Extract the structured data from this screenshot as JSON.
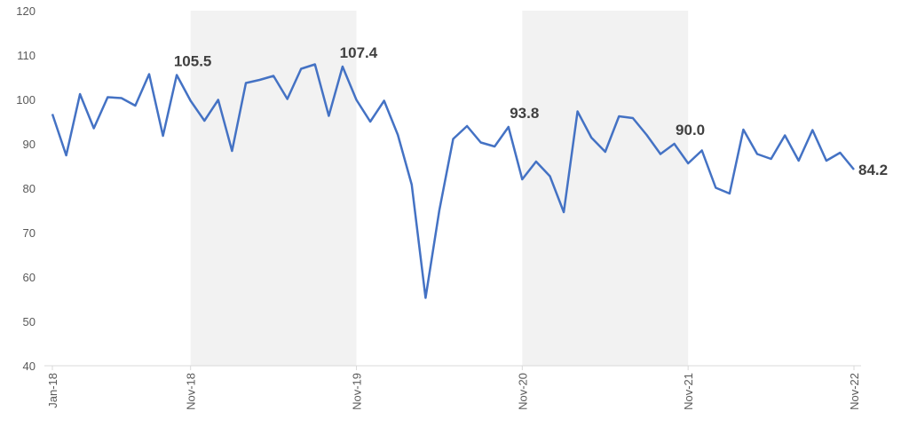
{
  "chart_data": {
    "type": "line",
    "categories": [
      "Jan-18",
      null,
      null,
      null,
      null,
      null,
      null,
      null,
      null,
      null,
      "Nov-18",
      null,
      null,
      null,
      null,
      null,
      null,
      null,
      null,
      null,
      null,
      null,
      "Nov-19",
      null,
      null,
      null,
      null,
      null,
      null,
      null,
      null,
      null,
      null,
      null,
      "Nov-20",
      null,
      null,
      null,
      null,
      null,
      null,
      null,
      null,
      null,
      null,
      null,
      "Nov-21",
      null,
      null,
      null,
      null,
      null,
      null,
      null,
      null,
      null,
      null,
      null,
      "Nov-22"
    ],
    "values": [
      96.7,
      87.4,
      101.2,
      93.5,
      100.5,
      100.3,
      98.6,
      105.7,
      91.8,
      105.5,
      99.7,
      95.2,
      99.9,
      88.4,
      103.7,
      104.4,
      105.3,
      100.1,
      106.9,
      107.9,
      96.3,
      107.4,
      99.9,
      95.0,
      99.7,
      92.0,
      80.8,
      55.3,
      75.0,
      91.1,
      94.0,
      90.3,
      89.4,
      93.8,
      82.0,
      86.0,
      82.7,
      74.6,
      97.3,
      91.4,
      88.2,
      96.2,
      95.8,
      92.0,
      87.7,
      90.0,
      85.6,
      88.5,
      80.1,
      78.8,
      93.2,
      87.7,
      86.6,
      91.9,
      86.2,
      93.1,
      86.2,
      88.0,
      84.2
    ],
    "value_labels": [
      null,
      null,
      null,
      null,
      null,
      null,
      null,
      null,
      null,
      "105.5",
      null,
      null,
      null,
      null,
      null,
      null,
      null,
      null,
      null,
      null,
      null,
      "107.4",
      null,
      null,
      null,
      null,
      null,
      null,
      null,
      null,
      null,
      null,
      null,
      "93.8",
      null,
      null,
      null,
      null,
      null,
      null,
      null,
      null,
      null,
      null,
      null,
      "90.0",
      null,
      null,
      null,
      null,
      null,
      null,
      null,
      null,
      null,
      null,
      null,
      null,
      "84.2"
    ],
    "color": "#4472c4",
    "shaded": [
      [
        10,
        22
      ],
      [
        34,
        46
      ]
    ],
    "ylim": [
      40,
      120
    ],
    "yticks": [
      40,
      50,
      60,
      70,
      80,
      90,
      100,
      110,
      120
    ],
    "grid": false
  }
}
